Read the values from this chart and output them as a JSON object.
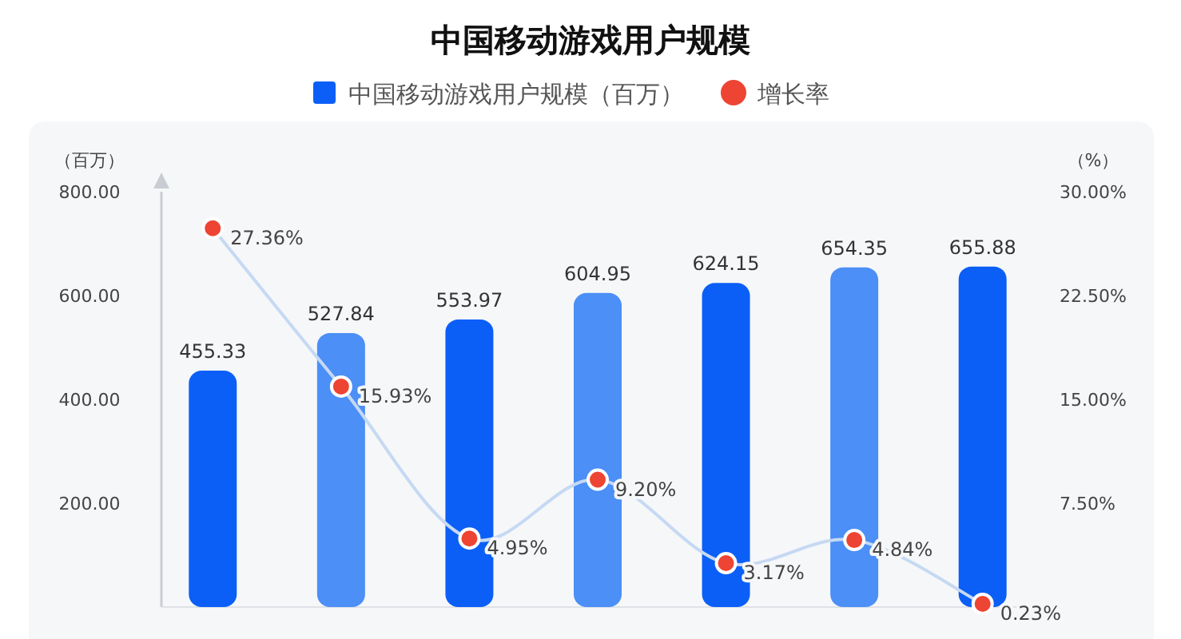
{
  "chart_data": {
    "type": "bar",
    "title": "中国移动游戏用户规模",
    "ylabel": "（百万）",
    "y2label": "（%）",
    "legend": "top",
    "grid": false,
    "marker": "circle",
    "categories": [
      null,
      null,
      null,
      null,
      null,
      null,
      null
    ],
    "ylim": [
      0,
      800
    ],
    "yticks": [
      {
        "value": 200,
        "label": "200.00"
      },
      {
        "value": 400,
        "label": "400.00"
      },
      {
        "value": 600,
        "label": "600.00"
      },
      {
        "value": 800,
        "label": "800.00"
      }
    ],
    "y2lim": [
      0,
      30
    ],
    "y2ticks": [
      {
        "value": 7.5,
        "label": "7.50%"
      },
      {
        "value": 15,
        "label": "15.00%"
      },
      {
        "value": 22.5,
        "label": "22.50%"
      },
      {
        "value": 30,
        "label": "30.00%"
      }
    ],
    "series": [
      {
        "name": "中国移动游戏用户规模（百万）",
        "type": "bar",
        "color": "#0b5ff7",
        "colors": [
          "#0b5ff7",
          "#4b8ff7",
          "#0b5ff7",
          "#4b8ff7",
          "#0b5ff7",
          "#4b8ff7",
          "#0b5ff7"
        ],
        "values": [
          455.33,
          527.84,
          553.97,
          604.95,
          624.15,
          654.35,
          655.88
        ],
        "value_labels": [
          "455.33",
          "527.84",
          "553.97",
          "604.95",
          "624.15",
          "654.35",
          "655.88"
        ]
      },
      {
        "name": "增长率",
        "type": "line",
        "axis": "y2",
        "color": "#ee4433",
        "values": [
          27.36,
          15.93,
          4.95,
          9.2,
          3.17,
          4.84,
          0.23
        ],
        "value_labels": [
          "27.36%",
          "15.93%",
          "4.95%",
          "9.20%",
          "3.17%",
          "4.84%",
          "0.23%"
        ]
      }
    ]
  }
}
